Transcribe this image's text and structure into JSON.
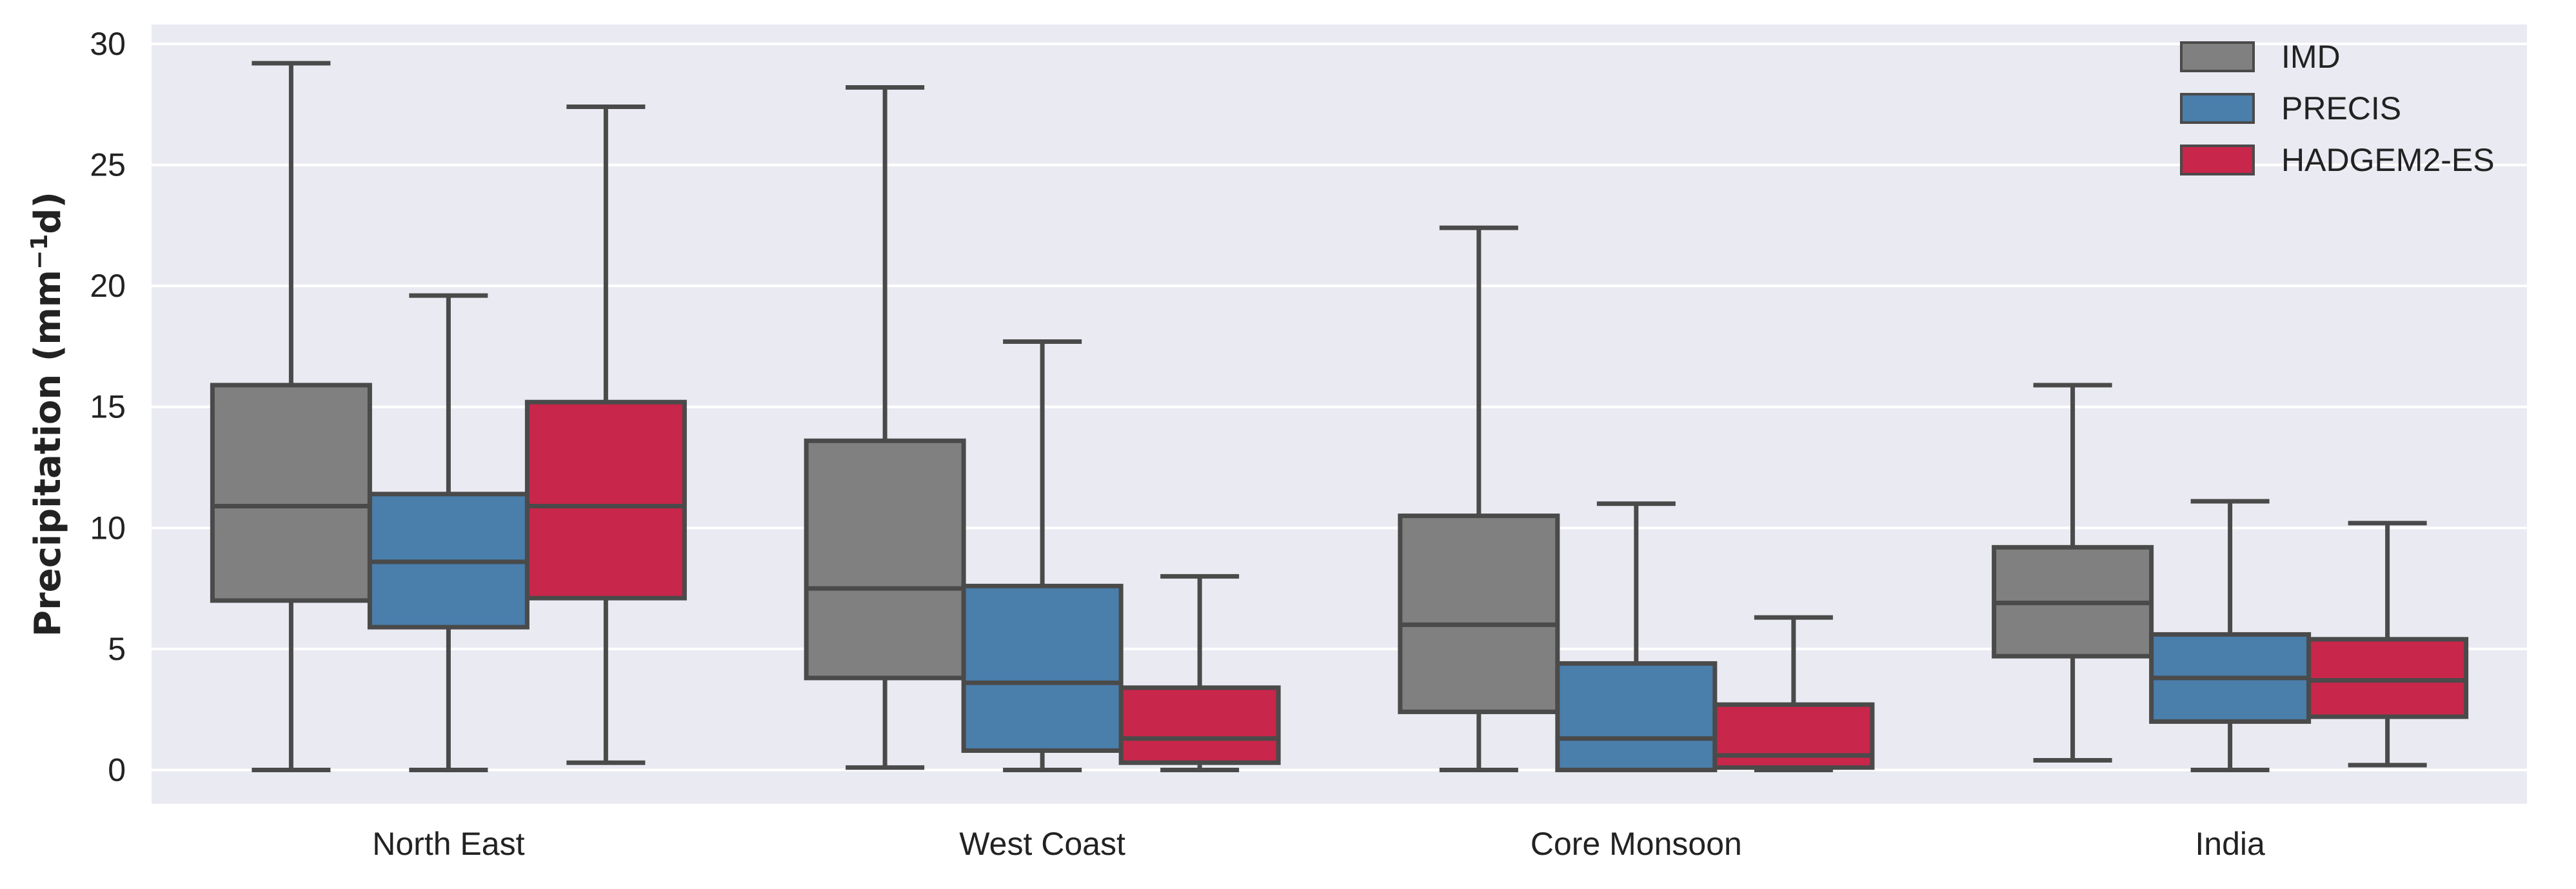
{
  "chart_data": {
    "type": "box",
    "categories": [
      "North East",
      "West Coast",
      "Core Monsoon",
      "India"
    ],
    "ylabel_main": "Precipitation (mm",
    "ylabel_sup": "−1",
    "ylabel_end": "d)",
    "ylim": [
      -1.4,
      30.8
    ],
    "yticks": [
      0,
      5,
      10,
      15,
      20,
      25,
      30
    ],
    "grid": true,
    "legend_position": "top-right",
    "series": [
      {
        "name": "IMD",
        "color": "#808080",
        "boxes": [
          {
            "whislo": 0.0,
            "q1": 7.0,
            "med": 10.9,
            "q3": 15.9,
            "whishi": 29.2
          },
          {
            "whislo": 0.1,
            "q1": 3.8,
            "med": 7.5,
            "q3": 13.6,
            "whishi": 28.2
          },
          {
            "whislo": 0.0,
            "q1": 2.4,
            "med": 6.0,
            "q3": 10.5,
            "whishi": 22.4
          },
          {
            "whislo": 0.4,
            "q1": 4.7,
            "med": 6.9,
            "q3": 9.2,
            "whishi": 15.9
          }
        ]
      },
      {
        "name": "PRECIS",
        "color": "#4a7eab",
        "boxes": [
          {
            "whislo": 0.0,
            "q1": 5.9,
            "med": 8.6,
            "q3": 11.4,
            "whishi": 19.6
          },
          {
            "whislo": 0.0,
            "q1": 0.8,
            "med": 3.6,
            "q3": 7.6,
            "whishi": 17.7
          },
          {
            "whislo": 0.0,
            "q1": 0.0,
            "med": 1.3,
            "q3": 4.4,
            "whishi": 11.0
          },
          {
            "whislo": 0.0,
            "q1": 2.0,
            "med": 3.8,
            "q3": 5.6,
            "whishi": 11.1
          }
        ]
      },
      {
        "name": "HADGEM2-ES",
        "color": "#c8264a",
        "boxes": [
          {
            "whislo": 0.3,
            "q1": 7.1,
            "med": 10.9,
            "q3": 15.2,
            "whishi": 27.4
          },
          {
            "whislo": 0.0,
            "q1": 0.3,
            "med": 1.3,
            "q3": 3.4,
            "whishi": 8.0
          },
          {
            "whislo": 0.0,
            "q1": 0.1,
            "med": 0.6,
            "q3": 2.7,
            "whishi": 6.3
          },
          {
            "whislo": 0.2,
            "q1": 2.2,
            "med": 3.7,
            "q3": 5.4,
            "whishi": 10.2
          }
        ]
      }
    ]
  },
  "colors": {
    "plot_background": "#eaeaf2",
    "grid": "#ffffff",
    "box_edge": "#4a4a4a",
    "text": "#222222"
  }
}
